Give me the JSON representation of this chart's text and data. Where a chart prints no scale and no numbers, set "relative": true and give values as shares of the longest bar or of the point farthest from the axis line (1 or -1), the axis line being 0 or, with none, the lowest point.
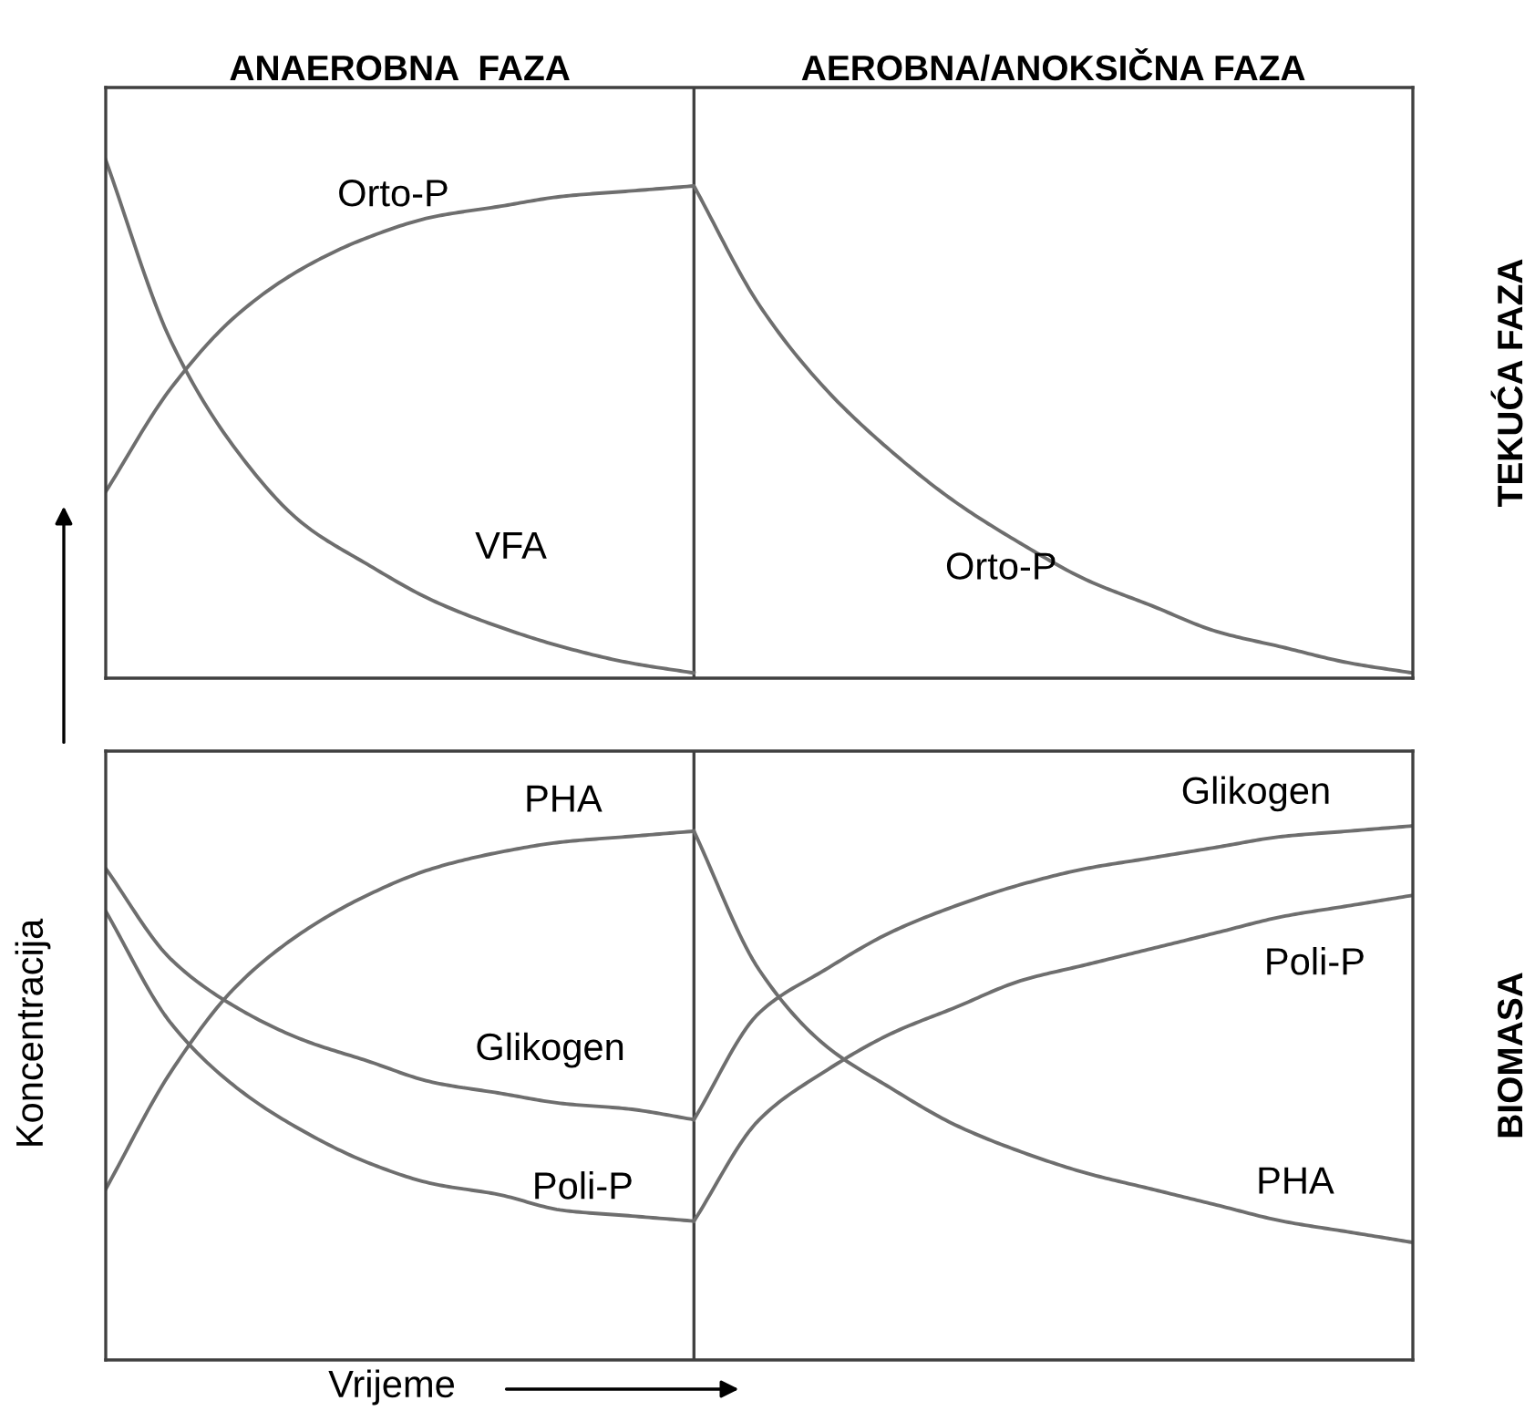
{
  "chart_data": [
    {
      "type": "line",
      "y2label": "TEKUĆA FAZA",
      "relative": true,
      "tick_labels": false,
      "legend": false,
      "marker": "none",
      "line_style": "solid",
      "annotations": [
        "ANAEROBNA  FAZA",
        "AEROBNA/ANOKSIČNA FAZA",
        "Orto-P"
      ],
      "categories": [
        null,
        null,
        null,
        null,
        null,
        null,
        null,
        null,
        null,
        null,
        null,
        null,
        null,
        null,
        null,
        null,
        null,
        null,
        null,
        null,
        null
      ],
      "series": [
        {
          "name": "Orto-P",
          "color": "#6e6e6e",
          "values": [
            0.36,
            0.56,
            0.7,
            0.79,
            0.85,
            0.89,
            0.91,
            0.93,
            0.94,
            0.95,
            0.72,
            0.56,
            0.44,
            0.34,
            0.26,
            0.19,
            0.14,
            0.09,
            0.06,
            0.03,
            0.01
          ]
        },
        {
          "name": "VFA",
          "color": "#6e6e6e",
          "values": [
            1.0,
            0.65,
            0.44,
            0.3,
            0.22,
            0.15,
            0.1,
            0.06,
            0.03,
            0.01,
            null,
            null,
            null,
            null,
            null,
            null,
            null,
            null,
            null,
            null,
            null
          ]
        }
      ]
    },
    {
      "type": "line",
      "y2label": "BIOMASA",
      "relative": true,
      "tick_labels": false,
      "legend": false,
      "marker": "none",
      "line_style": "solid",
      "xlabel": "Vrijeme",
      "ylabel": "Koncentracija",
      "categories": [
        null,
        null,
        null,
        null,
        null,
        null,
        null,
        null,
        null,
        null,
        null,
        null,
        null,
        null,
        null,
        null,
        null,
        null,
        null,
        null,
        null
      ],
      "series": [
        {
          "name": "PHA",
          "color": "#6e6e6e",
          "values": [
            0.32,
            0.54,
            0.7,
            0.8,
            0.87,
            0.92,
            0.95,
            0.97,
            0.98,
            0.99,
            null,
            null,
            null,
            null,
            null,
            null,
            null,
            null,
            null,
            null,
            null
          ]
        },
        {
          "name": "Glikogen",
          "color": "#6e6e6e",
          "values": [
            0.92,
            0.75,
            0.66,
            0.6,
            0.56,
            0.52,
            0.5,
            0.48,
            0.47,
            0.45,
            null,
            null,
            null,
            null,
            null,
            null,
            null,
            null,
            null,
            null,
            null
          ]
        },
        {
          "name": "Poli-P",
          "color": "#6e6e6e",
          "values": [
            0.84,
            0.63,
            0.51,
            0.43,
            0.37,
            0.33,
            0.31,
            0.28,
            0.27,
            0.26,
            null,
            null,
            null,
            null,
            null,
            null,
            null,
            null,
            null,
            null,
            null
          ]
        },
        {
          "name": "Glikogen",
          "color": "#6e6e6e",
          "values": [
            null,
            null,
            null,
            null,
            null,
            null,
            null,
            null,
            null,
            0.45,
            0.65,
            0.73,
            0.8,
            0.85,
            0.89,
            0.92,
            0.94,
            0.96,
            0.98,
            0.99,
            1.0
          ]
        },
        {
          "name": "Poli-P",
          "color": "#6e6e6e",
          "values": [
            null,
            null,
            null,
            null,
            null,
            null,
            null,
            null,
            null,
            0.26,
            0.45,
            0.54,
            0.61,
            0.66,
            0.71,
            0.74,
            0.77,
            0.8,
            0.83,
            0.85,
            0.87
          ]
        },
        {
          "name": "PHA",
          "color": "#6e6e6e",
          "values": [
            null,
            null,
            null,
            null,
            null,
            null,
            null,
            null,
            null,
            0.99,
            0.73,
            0.59,
            0.51,
            0.44,
            0.39,
            0.35,
            0.32,
            0.29,
            0.26,
            0.24,
            0.22
          ]
        }
      ]
    }
  ]
}
